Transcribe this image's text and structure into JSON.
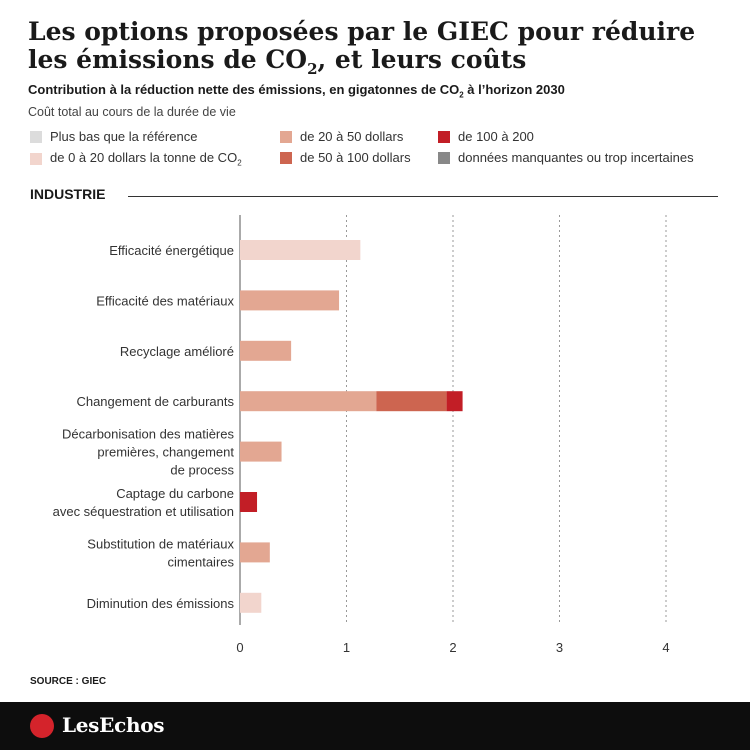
{
  "header": {
    "title_line1": "Les options proposées par le GIEC pour réduire",
    "title_line2_a": "les émissions de CO",
    "title_line2_sub": "2",
    "title_line2_b": ", et leurs coûts",
    "subtitle_a": "Contribution à la réduction nette des émissions, en gigatonnes de CO",
    "subtitle_sub": "2",
    "subtitle_b": " à l’horizon 2030"
  },
  "legend": {
    "title": "Coût total au cours de la durée de vie",
    "items": [
      {
        "label": "Plus bas que la référence",
        "color": "#dcdcdc"
      },
      {
        "label": "de 0 à 20 dollars la tonne de CO",
        "label_sub": "2",
        "color": "#f2d5cd"
      },
      {
        "label": "de 20 à 50 dollars",
        "color": "#e3a792"
      },
      {
        "label": "de 50 à 100 dollars",
        "color": "#cd6550"
      },
      {
        "label": "de 100 à 200",
        "color": "#c21e26"
      },
      {
        "label": "données manquantes ou trop incertaines",
        "color": "#888888"
      }
    ]
  },
  "section": {
    "label": "INDUSTRIE"
  },
  "chart_data": {
    "type": "bar",
    "orientation": "horizontal",
    "stacked": true,
    "categories": [
      [
        "Efficacité énergétique"
      ],
      [
        "Efficacité des matériaux"
      ],
      [
        "Recyclage amélioré"
      ],
      [
        "Changement de carburants"
      ],
      [
        "Décarbonisation des matières",
        "premières, changement",
        "de process"
      ],
      [
        "Captage du carbone",
        "avec séquestration et utilisation"
      ],
      [
        "Substitution de matériaux",
        "cimentaires"
      ],
      [
        "Diminution des émissions"
      ]
    ],
    "series": [
      {
        "name": "de 0 à 20 dollars la tonne de CO2",
        "color": "#f2d5cd",
        "values": [
          1.13,
          0,
          0,
          0,
          0,
          0,
          0,
          0.2
        ]
      },
      {
        "name": "de 20 à 50 dollars",
        "color": "#e3a792",
        "values": [
          0,
          0.93,
          0.48,
          1.28,
          0.39,
          0,
          0.28,
          0
        ]
      },
      {
        "name": "de 50 à 100 dollars",
        "color": "#cd6550",
        "values": [
          0,
          0,
          0,
          0.66,
          0,
          0,
          0,
          0
        ]
      },
      {
        "name": "de 100 à 200",
        "color": "#c21e26",
        "values": [
          0,
          0,
          0,
          0.15,
          0,
          0.16,
          0,
          0
        ]
      }
    ],
    "xlim": [
      0,
      4
    ],
    "xticks": [
      0,
      1,
      2,
      3,
      4
    ],
    "grid": "vertical dotted"
  },
  "source": "SOURCE : GIEC",
  "footer": {
    "brand": "LesEchos",
    "accent": "#d4232b"
  }
}
